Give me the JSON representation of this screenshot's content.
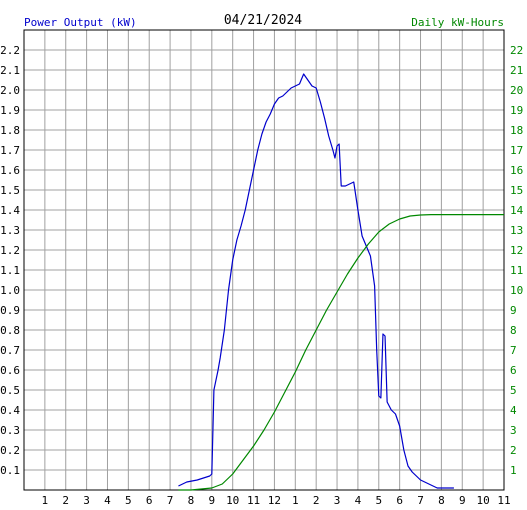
{
  "chart_data": {
    "type": "line",
    "title": "04/21/2024",
    "left_axis_label": "Power Output (kW)",
    "right_axis_label": "Daily kW-Hours",
    "colors": {
      "power": "#0000cc",
      "energy": "#008800",
      "grid": "#a0a0a0",
      "axis_text": "#000000",
      "left_label": "#0000cc",
      "right_label": "#008800",
      "right_ticks": "#008800"
    },
    "x_axis": {
      "unit": "hour of day",
      "range": [
        0,
        23
      ],
      "tick_labels": [
        "1",
        "2",
        "3",
        "4",
        "5",
        "6",
        "7",
        "8",
        "9",
        "10",
        "11",
        "12",
        "1",
        "2",
        "3",
        "4",
        "5",
        "6",
        "7",
        "8",
        "9",
        "10",
        "11"
      ]
    },
    "y_left": {
      "range": [
        0,
        2.3
      ],
      "tick_labels": [
        "0.1",
        "0.2",
        "0.3",
        "0.4",
        "0.5",
        "0.6",
        "0.7",
        "0.8",
        "0.9",
        "1.0",
        "1.1",
        "1.2",
        "1.3",
        "1.4",
        "1.5",
        "1.6",
        "1.7",
        "1.8",
        "1.9",
        "2.0",
        "2.1",
        "2.2"
      ]
    },
    "y_right": {
      "range": [
        0,
        23
      ],
      "tick_labels": [
        "1",
        "2",
        "3",
        "4",
        "5",
        "6",
        "7",
        "8",
        "9",
        "10",
        "11",
        "12",
        "13",
        "14",
        "15",
        "16",
        "17",
        "18",
        "19",
        "20",
        "21",
        "22"
      ]
    },
    "grid": true,
    "series": [
      {
        "key": "power",
        "axis": "left",
        "points": [
          [
            7.4,
            0.02
          ],
          [
            7.8,
            0.04
          ],
          [
            8.3,
            0.05
          ],
          [
            8.9,
            0.07
          ],
          [
            9.0,
            0.08
          ],
          [
            9.1,
            0.5
          ],
          [
            9.2,
            0.55
          ],
          [
            9.3,
            0.6
          ],
          [
            9.4,
            0.66
          ],
          [
            9.6,
            0.8
          ],
          [
            9.8,
            1.0
          ],
          [
            10.0,
            1.15
          ],
          [
            10.2,
            1.25
          ],
          [
            10.4,
            1.32
          ],
          [
            10.6,
            1.4
          ],
          [
            10.8,
            1.5
          ],
          [
            11.0,
            1.6
          ],
          [
            11.2,
            1.7
          ],
          [
            11.4,
            1.78
          ],
          [
            11.6,
            1.84
          ],
          [
            11.8,
            1.88
          ],
          [
            12.0,
            1.93
          ],
          [
            12.2,
            1.96
          ],
          [
            12.4,
            1.97
          ],
          [
            12.6,
            1.99
          ],
          [
            12.8,
            2.01
          ],
          [
            13.0,
            2.02
          ],
          [
            13.2,
            2.03
          ],
          [
            13.4,
            2.08
          ],
          [
            13.6,
            2.05
          ],
          [
            13.8,
            2.02
          ],
          [
            14.0,
            2.01
          ],
          [
            14.2,
            1.94
          ],
          [
            14.4,
            1.86
          ],
          [
            14.6,
            1.77
          ],
          [
            14.8,
            1.7
          ],
          [
            14.9,
            1.66
          ],
          [
            15.0,
            1.72
          ],
          [
            15.1,
            1.73
          ],
          [
            15.2,
            1.52
          ],
          [
            15.4,
            1.52
          ],
          [
            15.6,
            1.53
          ],
          [
            15.8,
            1.54
          ],
          [
            16.0,
            1.4
          ],
          [
            16.2,
            1.27
          ],
          [
            16.4,
            1.22
          ],
          [
            16.6,
            1.17
          ],
          [
            16.8,
            1.02
          ],
          [
            16.9,
            0.7
          ],
          [
            17.0,
            0.47
          ],
          [
            17.1,
            0.46
          ],
          [
            17.2,
            0.78
          ],
          [
            17.3,
            0.77
          ],
          [
            17.4,
            0.44
          ],
          [
            17.6,
            0.4
          ],
          [
            17.8,
            0.38
          ],
          [
            18.0,
            0.32
          ],
          [
            18.2,
            0.2
          ],
          [
            18.4,
            0.12
          ],
          [
            18.6,
            0.09
          ],
          [
            18.8,
            0.07
          ],
          [
            19.0,
            0.05
          ],
          [
            19.2,
            0.04
          ],
          [
            19.4,
            0.03
          ],
          [
            19.6,
            0.02
          ],
          [
            19.8,
            0.01
          ],
          [
            20.0,
            0.01
          ],
          [
            20.6,
            0.01
          ]
        ]
      },
      {
        "key": "energy",
        "axis": "right",
        "points": [
          [
            7.4,
            0.0
          ],
          [
            8.0,
            0.0
          ],
          [
            9.0,
            0.1
          ],
          [
            9.5,
            0.3
          ],
          [
            10.0,
            0.8
          ],
          [
            10.5,
            1.5
          ],
          [
            11.0,
            2.2
          ],
          [
            11.5,
            3.0
          ],
          [
            12.0,
            3.9
          ],
          [
            12.5,
            4.9
          ],
          [
            13.0,
            5.9
          ],
          [
            13.5,
            7.0
          ],
          [
            14.0,
            8.0
          ],
          [
            14.5,
            9.0
          ],
          [
            15.0,
            9.9
          ],
          [
            15.5,
            10.8
          ],
          [
            16.0,
            11.6
          ],
          [
            16.5,
            12.3
          ],
          [
            17.0,
            12.9
          ],
          [
            17.5,
            13.3
          ],
          [
            18.0,
            13.55
          ],
          [
            18.5,
            13.7
          ],
          [
            19.0,
            13.75
          ],
          [
            19.5,
            13.77
          ],
          [
            20.0,
            13.77
          ],
          [
            23.0,
            13.77
          ]
        ]
      }
    ]
  }
}
